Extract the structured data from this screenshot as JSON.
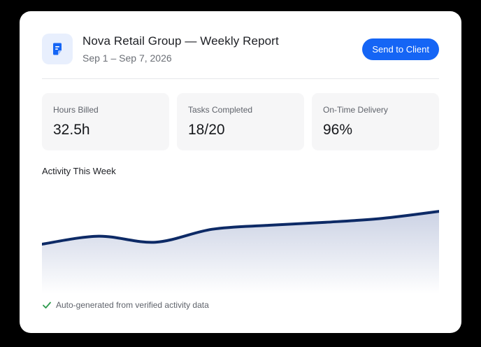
{
  "header": {
    "icon": "document-icon",
    "title": "Nova Retail Group — Weekly Report",
    "date_range": "Sep 1 – Sep 7, 2026",
    "send_button_label": "Send to Client"
  },
  "stats": [
    {
      "label": "Hours Billed",
      "value": "32.5h"
    },
    {
      "label": "Tasks Completed",
      "value": "18/20"
    },
    {
      "label": "On-Time Delivery",
      "value": "96%"
    }
  ],
  "activity": {
    "title": "Activity This Week",
    "chart_data": {
      "type": "area",
      "title": "Activity This Week",
      "xlabel": "",
      "ylabel": "",
      "x": [
        0,
        1,
        2,
        3,
        4,
        5,
        6,
        7
      ],
      "values": [
        0.5,
        0.58,
        0.52,
        0.65,
        0.69,
        0.72,
        0.76,
        0.83
      ],
      "grid": false,
      "line_color": "#0d2a66",
      "fill_color": "#dde2ee"
    }
  },
  "footer": {
    "icon": "check-icon",
    "text": "Auto-generated from verified activity data",
    "icon_color": "#2e9b4e"
  },
  "colors": {
    "accent": "#1565f5",
    "background": "#000000",
    "card": "#ffffff"
  }
}
